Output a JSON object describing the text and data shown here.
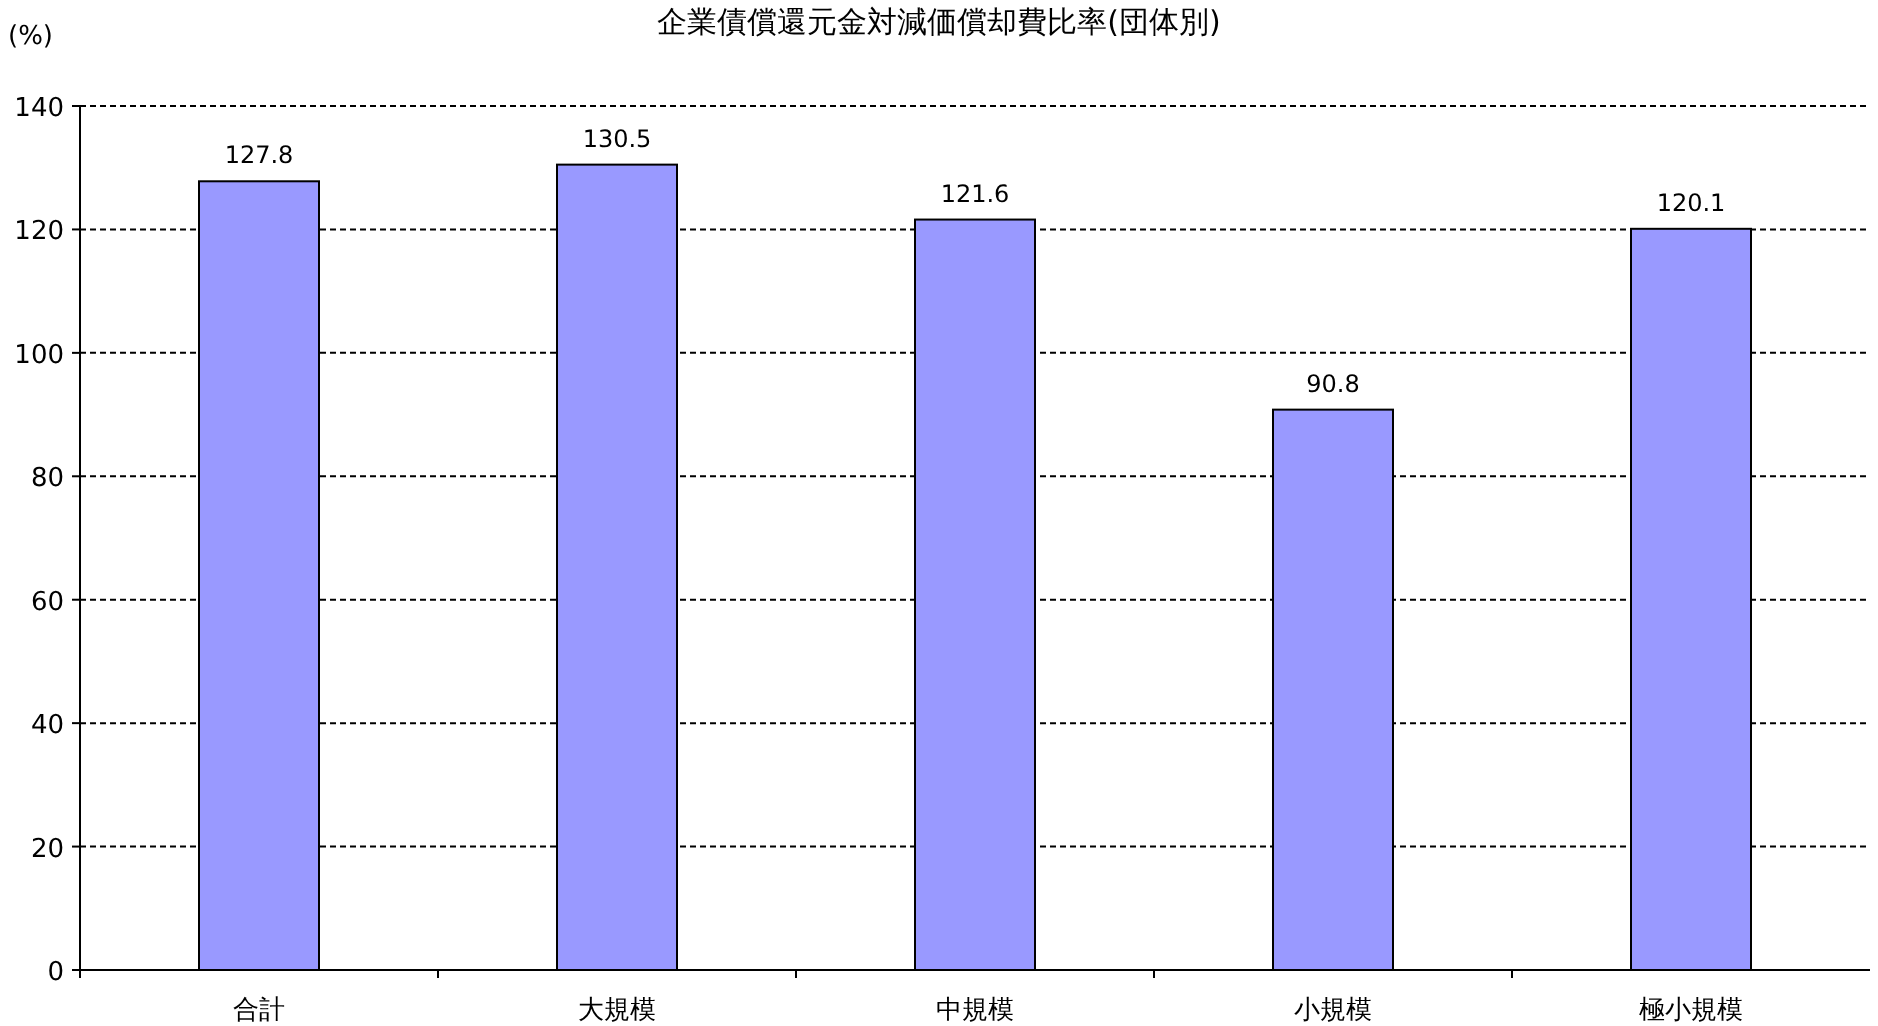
{
  "chart_data": {
    "type": "bar",
    "title": "企業債償還元金対減価償却費比率(団体別)",
    "ylabel": "(%)",
    "categories": [
      "合計",
      "大規模",
      "中規模",
      "小規模",
      "極小規模"
    ],
    "values": [
      127.8,
      130.5,
      121.6,
      90.8,
      120.1
    ],
    "color": "#9999ff",
    "ylim": [
      0,
      140
    ],
    "yticks": [
      0,
      20,
      40,
      60,
      80,
      100,
      120,
      140
    ],
    "grid": "y",
    "data_labels": true
  }
}
